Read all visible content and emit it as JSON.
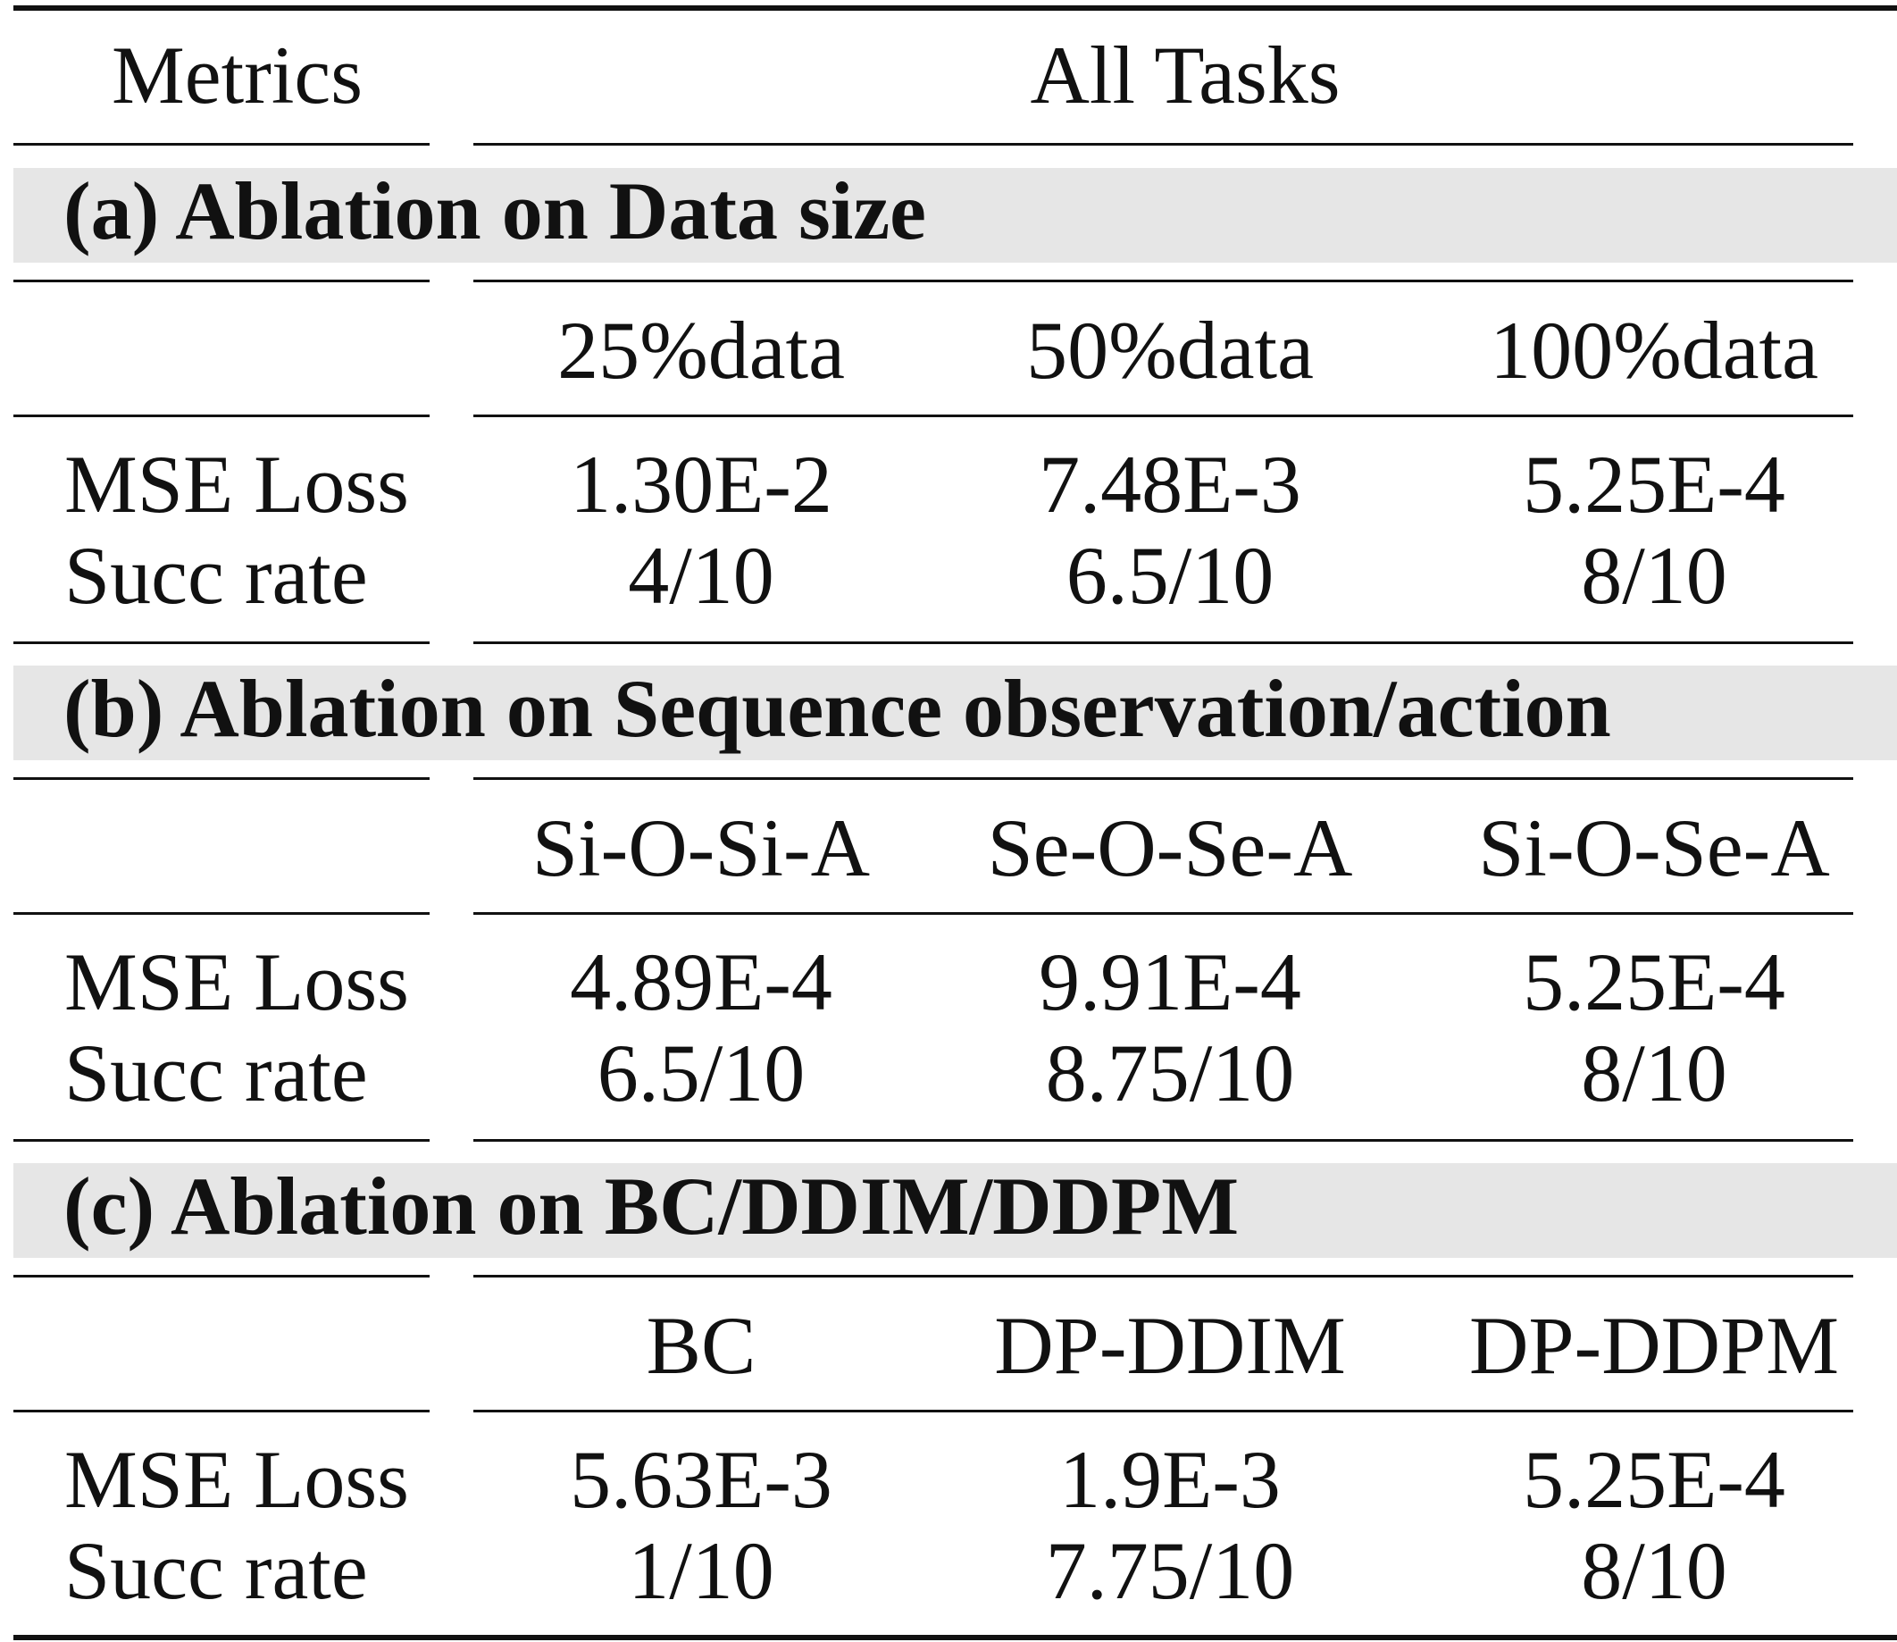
{
  "header": {
    "metrics": "Metrics",
    "all_tasks": "All Tasks"
  },
  "sections": [
    {
      "title": "(a) Ablation on Data size",
      "columns": [
        "25%data",
        "50%data",
        "100%data"
      ],
      "rows": [
        {
          "label": "MSE Loss",
          "values": [
            "1.30E-2",
            "7.48E-3",
            "5.25E-4"
          ]
        },
        {
          "label": "Succ rate",
          "values": [
            "4/10",
            "6.5/10",
            "8/10"
          ]
        }
      ]
    },
    {
      "title": "(b) Ablation on Sequence observation/action",
      "columns": [
        "Si-O-Si-A",
        "Se-O-Se-A",
        "Si-O-Se-A"
      ],
      "rows": [
        {
          "label": "MSE Loss",
          "values": [
            "4.89E-4",
            "9.91E-4",
            "5.25E-4"
          ]
        },
        {
          "label": "Succ rate",
          "values": [
            "6.5/10",
            "8.75/10",
            "8/10"
          ]
        }
      ]
    },
    {
      "title": "(c) Ablation on BC/DDIM/DDPM",
      "columns": [
        "BC",
        "DP-DDIM",
        "DP-DDPM"
      ],
      "rows": [
        {
          "label": "MSE Loss",
          "values": [
            "5.63E-3",
            "1.9E-3",
            "5.25E-4"
          ]
        },
        {
          "label": "Succ rate",
          "values": [
            "1/10",
            "7.75/10",
            "8/10"
          ]
        }
      ]
    }
  ]
}
